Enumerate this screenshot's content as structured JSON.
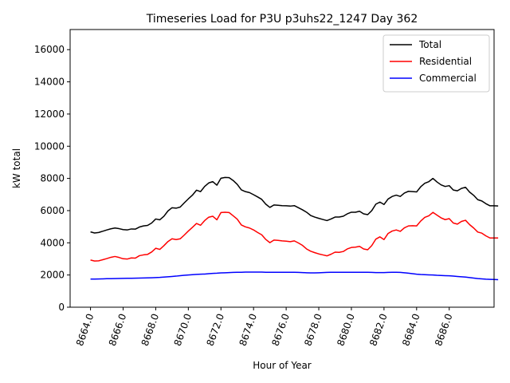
{
  "chart_data": {
    "type": "line",
    "title": "Timeseries Load for P3U p3uhs22_1247  Day 362",
    "xlabel": "Hour of Year",
    "ylabel": "kW total",
    "xlim": [
      8662.75,
      8688.75
    ],
    "ylim": [
      0,
      17250
    ],
    "x_ticks": [
      8664,
      8666,
      8668,
      8670,
      8672,
      8674,
      8676,
      8678,
      8680,
      8682,
      8684,
      8686
    ],
    "x_tick_labels": [
      "8664.0",
      "8666.0",
      "8668.0",
      "8670.0",
      "8672.0",
      "8674.0",
      "8676.0",
      "8678.0",
      "8680.0",
      "8682.0",
      "8684.0",
      "8686.0"
    ],
    "y_ticks": [
      0,
      2000,
      4000,
      6000,
      8000,
      10000,
      12000,
      14000,
      16000
    ],
    "y_tick_labels": [
      "0",
      "2000",
      "4000",
      "6000",
      "8000",
      "10000",
      "12000",
      "14000",
      "16000"
    ],
    "legend_position": "top-right",
    "x_start": 8664.0,
    "x_step": 0.25,
    "series": [
      {
        "name": "Total",
        "color": "#000000",
        "values": [
          4680,
          4610,
          4640,
          4720,
          4800,
          4870,
          4920,
          4880,
          4820,
          4800,
          4860,
          4850,
          4980,
          5050,
          5080,
          5230,
          5480,
          5430,
          5650,
          5980,
          6180,
          6150,
          6220,
          6480,
          6730,
          6960,
          7270,
          7180,
          7500,
          7720,
          7800,
          7580,
          8010,
          8060,
          8050,
          7870,
          7630,
          7290,
          7180,
          7120,
          6990,
          6850,
          6700,
          6400,
          6200,
          6350,
          6330,
          6310,
          6300,
          6280,
          6310,
          6180,
          6050,
          5900,
          5700,
          5600,
          5520,
          5450,
          5380,
          5480,
          5600,
          5600,
          5650,
          5800,
          5900,
          5900,
          5960,
          5800,
          5750,
          6000,
          6400,
          6530,
          6380,
          6720,
          6880,
          6960,
          6880,
          7090,
          7200,
          7180,
          7160,
          7480,
          7700,
          7800,
          8000,
          7780,
          7600,
          7500,
          7550,
          7280,
          7230,
          7380,
          7450,
          7150,
          6950,
          6680,
          6600,
          6430,
          6300,
          6300,
          6290
        ],
        "value_labels_visible": false
      },
      {
        "name": "Residential",
        "color": "#ff0000",
        "values": [
          2930,
          2870,
          2880,
          2950,
          3020,
          3100,
          3150,
          3090,
          3010,
          2990,
          3060,
          3050,
          3200,
          3250,
          3280,
          3430,
          3660,
          3590,
          3820,
          4080,
          4250,
          4200,
          4250,
          4480,
          4730,
          4960,
          5200,
          5090,
          5380,
          5590,
          5650,
          5430,
          5880,
          5900,
          5880,
          5680,
          5470,
          5110,
          4990,
          4920,
          4800,
          4640,
          4500,
          4210,
          4010,
          4170,
          4150,
          4120,
          4100,
          4070,
          4120,
          3990,
          3840,
          3620,
          3480,
          3390,
          3310,
          3250,
          3190,
          3290,
          3420,
          3410,
          3460,
          3620,
          3710,
          3730,
          3780,
          3620,
          3570,
          3830,
          4230,
          4370,
          4200,
          4580,
          4730,
          4800,
          4710,
          4930,
          5050,
          5060,
          5050,
          5350,
          5580,
          5680,
          5890,
          5720,
          5550,
          5440,
          5500,
          5230,
          5160,
          5330,
          5400,
          5130,
          4920,
          4670,
          4600,
          4430,
          4300,
          4300,
          4300
        ],
        "value_labels_visible": false
      },
      {
        "name": "Commercial",
        "color": "#0000ff",
        "values": [
          1750,
          1750,
          1755,
          1760,
          1770,
          1775,
          1780,
          1785,
          1790,
          1795,
          1800,
          1805,
          1810,
          1815,
          1820,
          1830,
          1840,
          1850,
          1870,
          1890,
          1910,
          1930,
          1960,
          1980,
          2000,
          2020,
          2040,
          2050,
          2060,
          2080,
          2100,
          2110,
          2130,
          2140,
          2150,
          2160,
          2170,
          2170,
          2180,
          2180,
          2180,
          2180,
          2180,
          2170,
          2170,
          2170,
          2170,
          2170,
          2170,
          2170,
          2170,
          2160,
          2150,
          2140,
          2130,
          2130,
          2140,
          2150,
          2160,
          2170,
          2170,
          2170,
          2170,
          2170,
          2170,
          2170,
          2170,
          2170,
          2170,
          2160,
          2150,
          2150,
          2150,
          2160,
          2170,
          2170,
          2160,
          2140,
          2110,
          2080,
          2050,
          2030,
          2020,
          2010,
          2000,
          1980,
          1970,
          1960,
          1950,
          1930,
          1910,
          1890,
          1870,
          1840,
          1810,
          1780,
          1760,
          1740,
          1730,
          1720,
          1710
        ],
        "value_labels_visible": false
      }
    ]
  }
}
